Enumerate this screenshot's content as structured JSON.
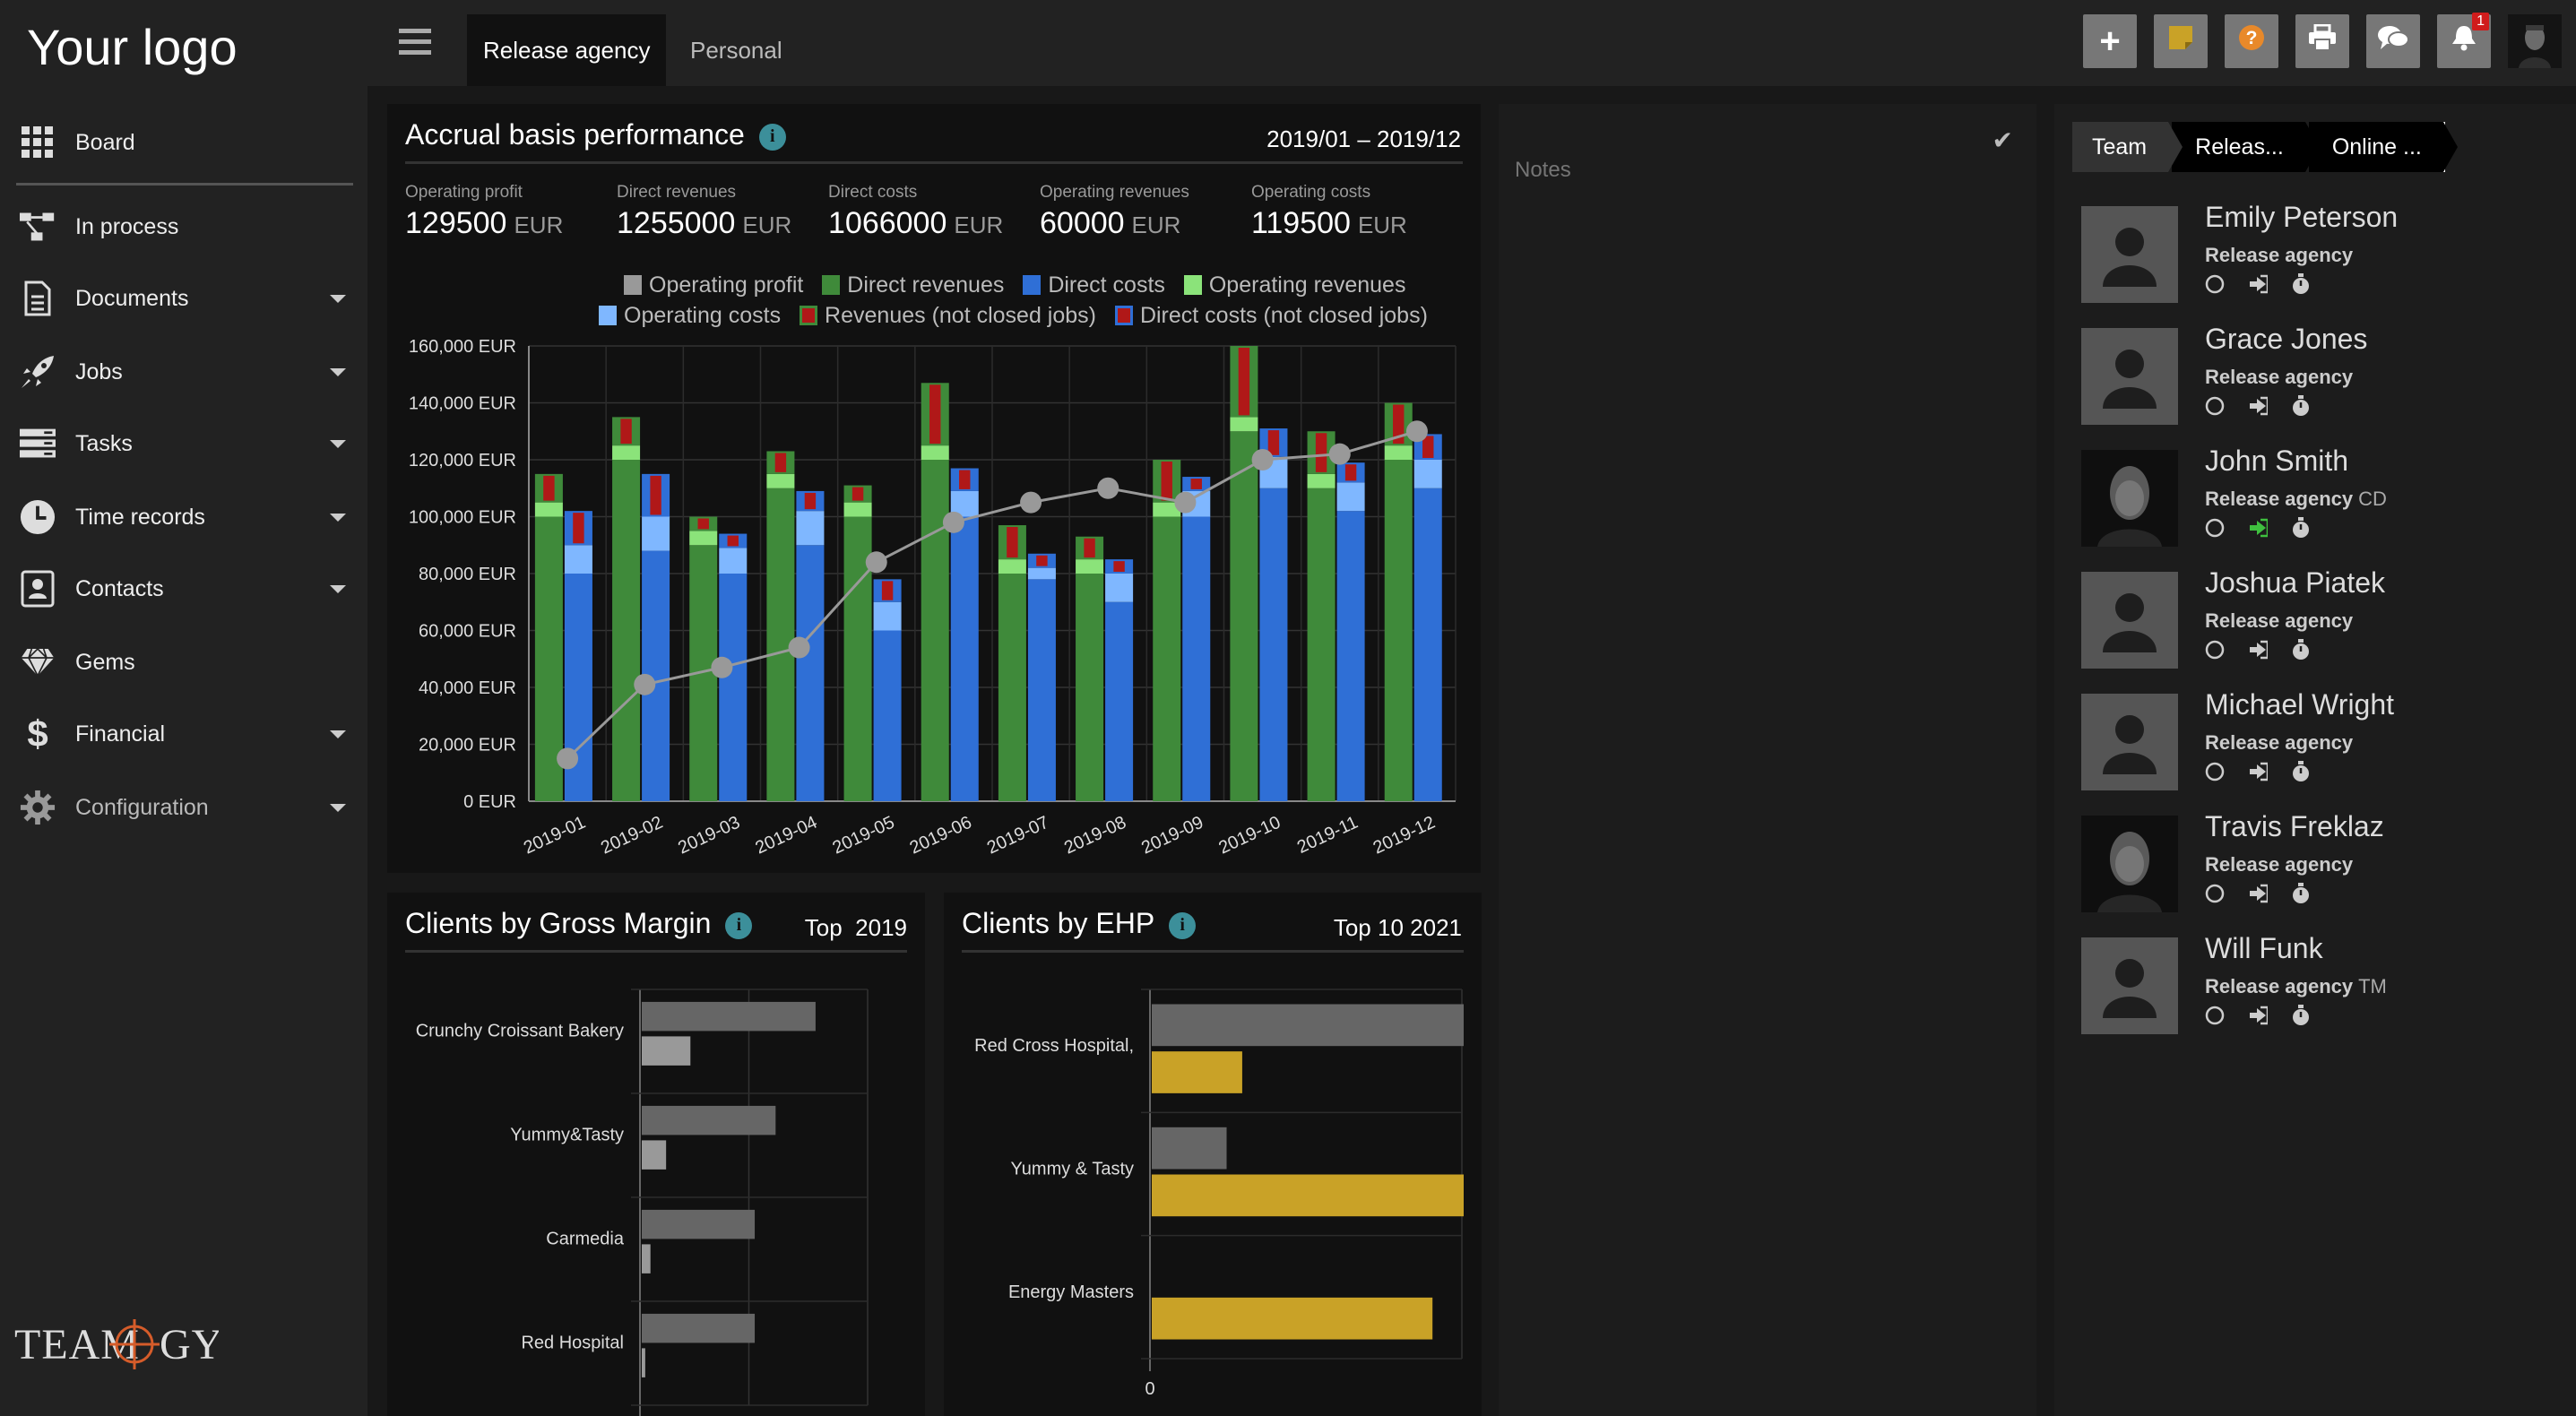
{
  "logo": "Your logo",
  "brand": "TEAMOGY",
  "nav": {
    "items": [
      {
        "label": "Board",
        "icon": "grid-icon"
      },
      {
        "label": "In process",
        "icon": "workflow-icon"
      },
      {
        "label": "Documents",
        "icon": "document-icon"
      },
      {
        "label": "Jobs",
        "icon": "rocket-icon"
      },
      {
        "label": "Tasks",
        "icon": "tasks-icon"
      },
      {
        "label": "Time records",
        "icon": "clock-icon"
      },
      {
        "label": "Contacts",
        "icon": "contacts-icon"
      },
      {
        "label": "Gems",
        "icon": "diamond-icon"
      },
      {
        "label": "Financial",
        "icon": "dollar-icon"
      },
      {
        "label": "Configuration",
        "icon": "gear-icon"
      }
    ]
  },
  "tabs": [
    {
      "label": "Release agency",
      "active": true
    },
    {
      "label": "Personal",
      "active": false
    }
  ],
  "toolbar": {
    "icons": [
      "plus-icon",
      "note-icon",
      "help-icon",
      "print-icon",
      "chat-icon",
      "bell-icon",
      "user-avatar"
    ],
    "notification_count": "1",
    "colors": {
      "note": "#c9a227",
      "help": "#e8892a"
    }
  },
  "accrual": {
    "title": "Accrual basis performance",
    "period": "2019/01 – 2019/12",
    "kpis": [
      {
        "label": "Operating profit",
        "value": "129500",
        "unit": "EUR"
      },
      {
        "label": "Direct revenues",
        "value": "1255000",
        "unit": "EUR"
      },
      {
        "label": "Direct costs",
        "value": "1066000",
        "unit": "EUR"
      },
      {
        "label": "Operating revenues",
        "value": "60000",
        "unit": "EUR"
      },
      {
        "label": "Operating costs",
        "value": "119500",
        "unit": "EUR"
      }
    ],
    "legend": [
      {
        "label": "Operating profit",
        "color": "#999999"
      },
      {
        "label": "Direct revenues",
        "color": "#3f8a3a"
      },
      {
        "label": "Direct costs",
        "color": "#2f6fd6"
      },
      {
        "label": "Operating revenues",
        "color": "#8be37a"
      },
      {
        "label": "Operating costs",
        "color": "#7fb7ff"
      },
      {
        "label": "Revenues (not closed jobs)",
        "color": "#b01818"
      },
      {
        "label": "Direct costs (not closed jobs)",
        "color": "#b01818"
      }
    ]
  },
  "chart_data": [
    {
      "type": "bar",
      "title": "Accrual basis performance",
      "categories": [
        "2019-01",
        "2019-02",
        "2019-03",
        "2019-04",
        "2019-05",
        "2019-06",
        "2019-07",
        "2019-08",
        "2019-09",
        "2019-10",
        "2019-11",
        "2019-12"
      ],
      "y_ticks": [
        "0 EUR",
        "20,000 EUR",
        "40,000 EUR",
        "60,000 EUR",
        "80,000 EUR",
        "100,000 EUR",
        "120,000 EUR",
        "140,000 EUR",
        "160,000 EUR"
      ],
      "ylim": [
        0,
        160000
      ],
      "grid": true,
      "revenue_stack": {
        "direct_revenues": [
          100000,
          120000,
          90000,
          110000,
          100000,
          120000,
          80000,
          80000,
          100000,
          130000,
          110000,
          120000
        ],
        "operating_revenues": [
          5000,
          5000,
          5000,
          5000,
          5000,
          5000,
          5000,
          5000,
          5000,
          5000,
          5000,
          5000
        ],
        "revenues_not_closed": [
          10000,
          10000,
          5000,
          8000,
          6000,
          22000,
          12000,
          8000,
          15000,
          25000,
          15000,
          15000
        ]
      },
      "cost_stack": {
        "direct_costs": [
          80000,
          88000,
          80000,
          90000,
          60000,
          100000,
          78000,
          70000,
          100000,
          110000,
          102000,
          110000
        ],
        "operating_costs": [
          10000,
          12000,
          9000,
          12000,
          10000,
          9000,
          4000,
          10000,
          9000,
          11000,
          10000,
          10000
        ],
        "direct_costs_not_closed": [
          12000,
          15000,
          5000,
          7000,
          8000,
          8000,
          5000,
          5000,
          5000,
          10000,
          7000,
          9000
        ]
      },
      "line": {
        "name": "Operating profit",
        "values": [
          15000,
          41000,
          47000,
          54000,
          84000,
          98000,
          105000,
          110000,
          105000,
          120000,
          122000,
          130000
        ]
      },
      "colors": {
        "direct_revenues": "#3f8a3a",
        "operating_revenues": "#8be37a",
        "direct_costs": "#2f6fd6",
        "operating_costs": "#7fb7ff",
        "not_closed": "#b01818",
        "line": "#999999"
      }
    },
    {
      "type": "bar",
      "title": "Clients by Gross Margin",
      "orientation": "horizontal",
      "categories": [
        "Crunchy Croissant Bakery",
        "Yummy&Tasty",
        "Carmedia",
        "Red Hospital"
      ],
      "series": [
        {
          "values": [
            100,
            77,
            65,
            65
          ],
          "color": "#666666"
        },
        {
          "values": [
            28,
            14,
            5,
            2
          ],
          "color": "#999999"
        }
      ],
      "xlim": [
        0,
        115
      ]
    },
    {
      "type": "bar",
      "title": "Clients by EHP",
      "orientation": "horizontal",
      "categories": [
        "Red Cross Hospital,",
        "Yummy & Tasty",
        "Energy Masters"
      ],
      "series": [
        {
          "values": [
            100,
            24,
            0
          ],
          "color": "#666666"
        },
        {
          "values": [
            29,
            100,
            90
          ],
          "color": "#c9a227"
        }
      ],
      "xlim": [
        0,
        100
      ],
      "x_ticks": [
        "0"
      ]
    }
  ],
  "gross_margin": {
    "title": "Clients by Gross Margin",
    "filter": "Top",
    "year": "2019"
  },
  "ehp": {
    "title": "Clients by EHP",
    "filter": "Top 10",
    "year": "2021"
  },
  "notes": {
    "placeholder": "Notes"
  },
  "team": {
    "breadcrumb": [
      "Team",
      "Releas...",
      "Online ..."
    ],
    "members": [
      {
        "name": "Emily Peterson",
        "agency": "Release agency",
        "suffix": "",
        "photo": false
      },
      {
        "name": "Grace Jones",
        "agency": "Release agency",
        "suffix": "",
        "photo": false
      },
      {
        "name": "John Smith",
        "agency": "Release agency",
        "suffix": "CD",
        "photo": true,
        "checked_in": true
      },
      {
        "name": "Joshua Piatek",
        "agency": "Release agency",
        "suffix": "",
        "photo": false
      },
      {
        "name": "Michael Wright",
        "agency": "Release agency",
        "suffix": "",
        "photo": false
      },
      {
        "name": "Travis Freklaz",
        "agency": "Release agency",
        "suffix": "",
        "photo": true
      },
      {
        "name": "Will Funk",
        "agency": "Release agency",
        "suffix": "TM",
        "photo": false
      }
    ]
  }
}
